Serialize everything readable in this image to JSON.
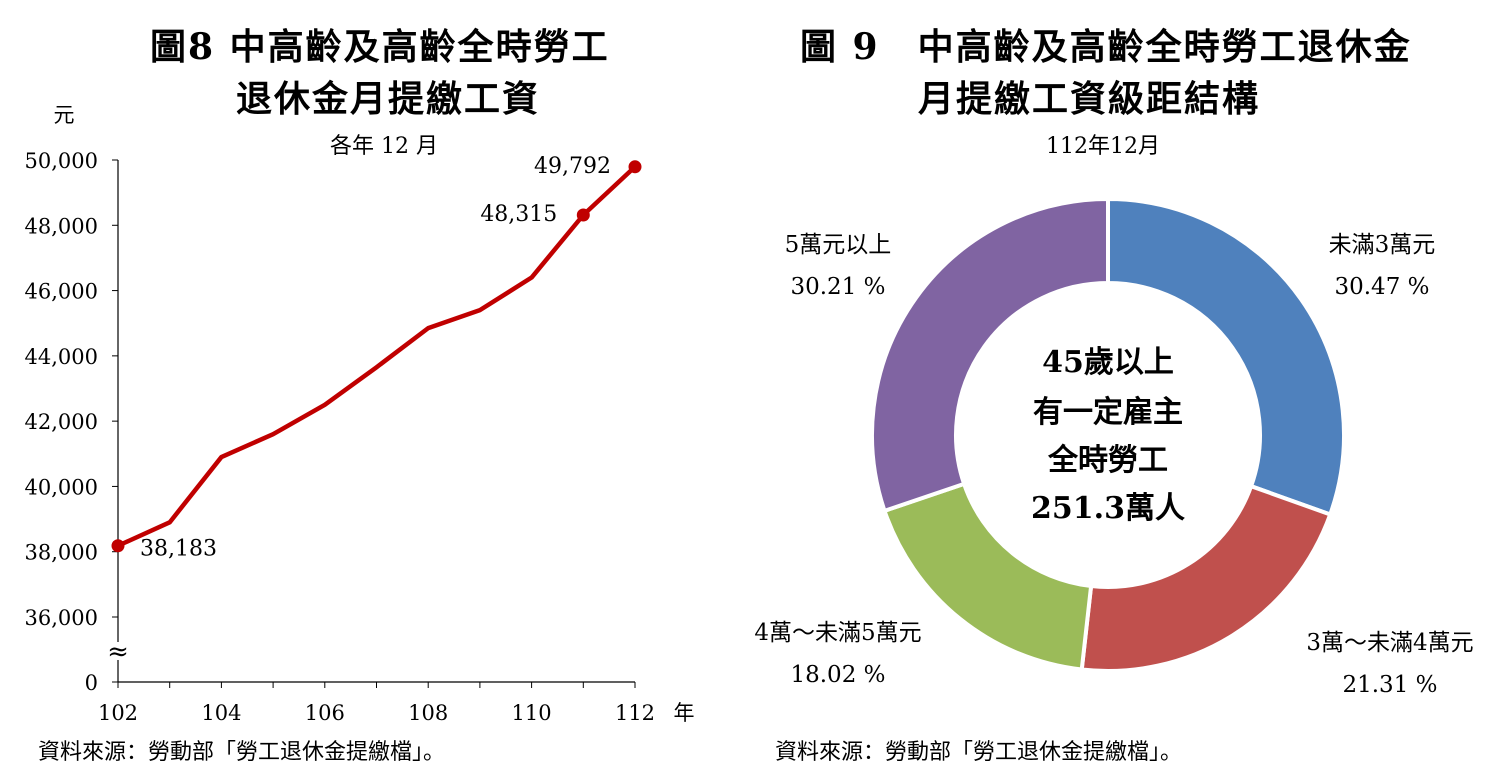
{
  "chart_data": [
    {
      "type": "line",
      "title_line1": "圖8  中高齡及高齡全時勞工",
      "title_line2": "退休金月提繳工資",
      "subtitle": "各年 12 月",
      "ylabel": "元",
      "xlabel": "年",
      "ylim": [
        36000,
        50000
      ],
      "y_ticks": [
        "50,000",
        "48,000",
        "46,000",
        "44,000",
        "42,000",
        "40,000",
        "38,000",
        "36,000",
        "0"
      ],
      "x_ticks": [
        "102",
        "104",
        "106",
        "108",
        "110",
        "112"
      ],
      "axis_break": "≈",
      "grid": false,
      "color": "#C00000",
      "x": [
        102,
        103,
        104,
        105,
        106,
        107,
        108,
        109,
        110,
        111,
        112
      ],
      "values": [
        38183,
        38900,
        40900,
        41600,
        42500,
        43650,
        44850,
        45400,
        46400,
        48315,
        49792
      ],
      "markers": [
        {
          "x": 102,
          "y": 38183,
          "label": "38,183"
        },
        {
          "x": 111,
          "y": 48315,
          "label": "48,315"
        },
        {
          "x": 112,
          "y": 49792,
          "label": "49,792"
        }
      ],
      "source": "資料來源：勞動部「勞工退休金提繳檔」。"
    },
    {
      "type": "pie",
      "title_line1": "圖 9　中高齡及高齡全時勞工退休金",
      "title_line2": "月提繳工資級距結構",
      "subtitle": "112年12月",
      "center_lines": [
        "45歲以上",
        "有一定雇主",
        "全時勞工",
        "251.3萬人"
      ],
      "slices": [
        {
          "name": "未滿3萬元",
          "value": 30.47,
          "label": "30.47 %",
          "color": "#4F81BD"
        },
        {
          "name": "3萬～未滿4萬元",
          "value": 21.31,
          "label": "21.31 %",
          "color": "#C0504D"
        },
        {
          "name": "4萬～未滿5萬元",
          "value": 18.02,
          "label": "18.02 %",
          "color": "#9BBB59"
        },
        {
          "name": "5萬元以上",
          "value": 30.21,
          "label": "30.21 %",
          "color": "#8064A2"
        }
      ],
      "source": "資料來源：勞動部「勞工退休金提繳檔」。"
    }
  ]
}
